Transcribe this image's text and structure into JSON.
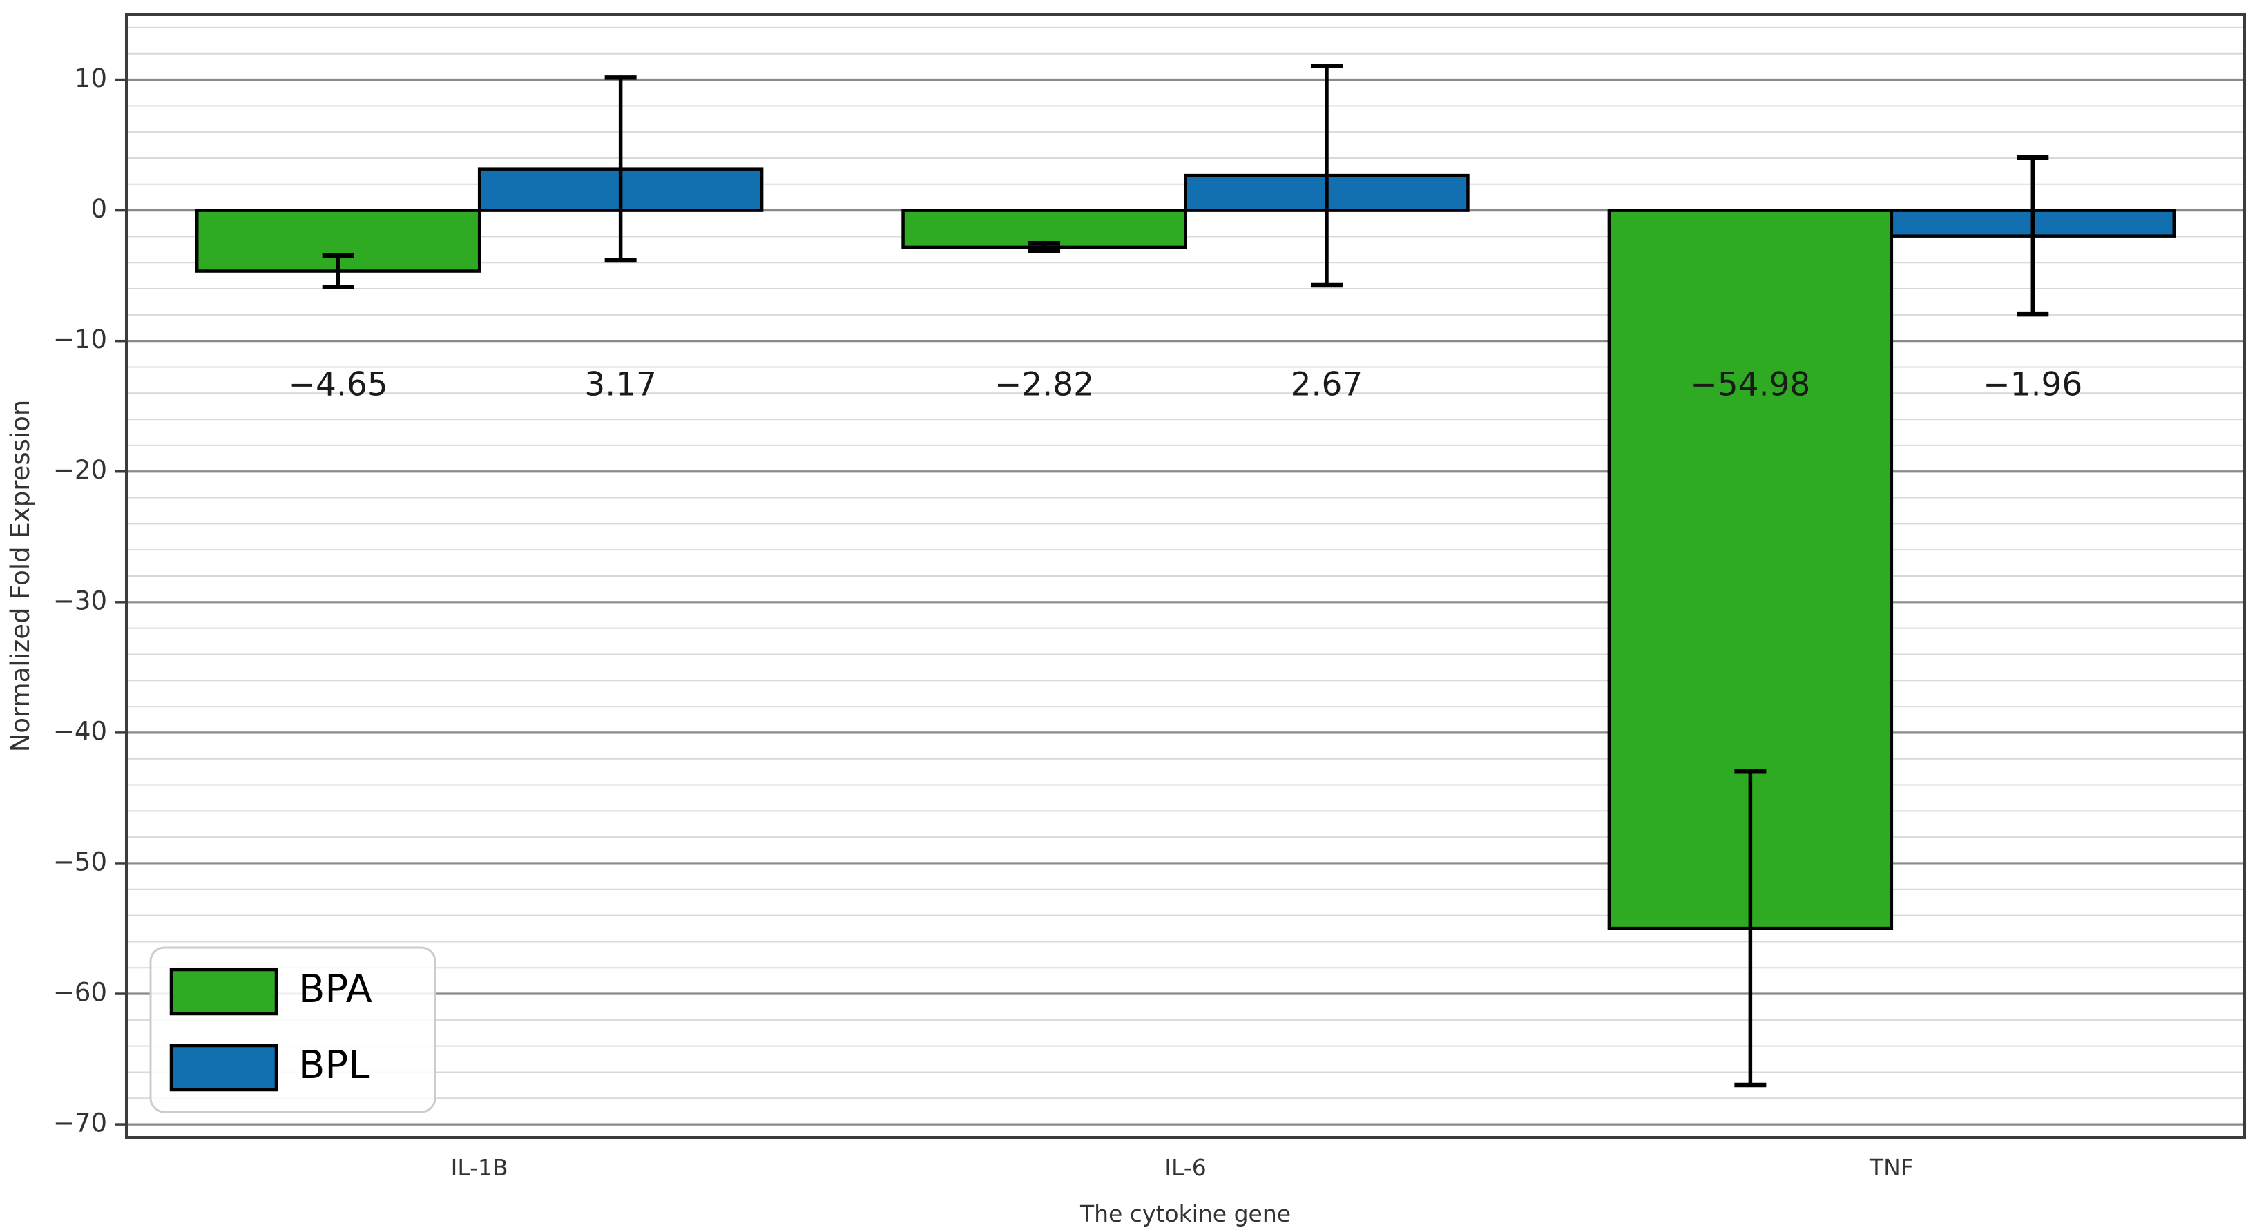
{
  "chart_data": {
    "type": "bar",
    "title": "",
    "categories": [
      "IL-1B",
      "IL-6",
      "TNF"
    ],
    "series": [
      {
        "name": "BPA",
        "color": "#2eab22",
        "values": [
          -4.65,
          -2.82,
          -54.98
        ],
        "errors": [
          1.2,
          0.3,
          12.0
        ],
        "value_labels": [
          "−4.65",
          "−2.82",
          "−54.98"
        ]
      },
      {
        "name": "BPL",
        "color": "#1270b0",
        "values": [
          3.17,
          2.67,
          -1.96
        ],
        "errors": [
          7.0,
          8.4,
          6.0
        ],
        "value_labels": [
          "3.17",
          "2.67",
          "−1.96"
        ]
      }
    ],
    "xlabel": "The cytokine gene",
    "ylabel": "Normalized Fold Expression",
    "ylim": [
      -71,
      15
    ],
    "xlim": [
      -0.5,
      2.5
    ],
    "yticks": [
      10,
      0,
      -10,
      -20,
      -30,
      -40,
      -50,
      -60,
      -70
    ],
    "ytick_labels": [
      "10",
      "0",
      "−10",
      "−20",
      "−30",
      "−40",
      "−50",
      "−60",
      "−70"
    ],
    "minor_grid_step": 2,
    "grid": true,
    "bar_width": 0.4,
    "value_label_y": -13.5,
    "legend_position": "lower left",
    "legend_items": [
      "BPA",
      "BPL"
    ]
  },
  "style_colors": {
    "bar_edge": "#000000",
    "error_bar": "#000000",
    "major_grid": "#8a8a8a",
    "minor_grid": "#d9d9d9",
    "axis_frame": "#3c3c3c",
    "tick_text": "#333333",
    "value_label_text": "#1a1a1a",
    "legend_border": "#cccccc",
    "legend_bg_alpha": "0.85"
  }
}
